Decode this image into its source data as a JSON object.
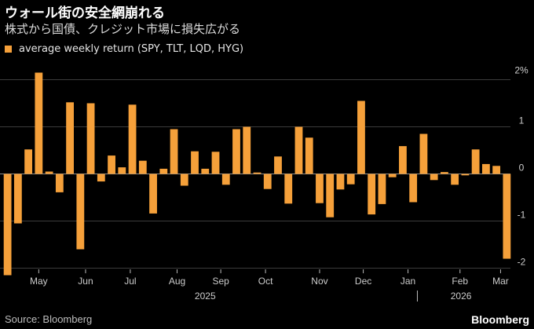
{
  "title": "ウォール街の安全網崩れる",
  "subtitle": "株式から国債、クレジット市場に損失広がる",
  "source": "Source: Bloomberg",
  "brand": "Bloomberg",
  "colors": {
    "bar": "#f5a03a",
    "grid": "#3c3c3c",
    "zero": "#8a8a8a",
    "tick": "#cccccc"
  },
  "chart_data": {
    "type": "bar",
    "series": [
      {
        "name": "average weekly return (SPY, TLT, LQD, HYG)",
        "values": [
          -2.15,
          -1.05,
          0.52,
          2.15,
          0.05,
          -0.39,
          1.52,
          -1.6,
          1.5,
          -0.16,
          0.39,
          0.14,
          1.47,
          0.28,
          -0.84,
          0.11,
          0.95,
          -0.25,
          0.48,
          0.11,
          0.47,
          -0.23,
          0.95,
          1.0,
          0.03,
          -0.32,
          0.37,
          -0.63,
          1.0,
          0.77,
          -0.62,
          -0.92,
          -0.33,
          -0.22,
          1.55,
          -0.86,
          -0.64,
          -0.07,
          0.59,
          -0.6,
          0.85,
          -0.13,
          0.04,
          -0.23,
          -0.03,
          0.52,
          0.21,
          0.17,
          -1.8
        ]
      }
    ],
    "ylim": [
      -2.3,
      2.3
    ],
    "yticks": [
      {
        "value": 2,
        "label": "2%"
      },
      {
        "value": 1,
        "label": "1"
      },
      {
        "value": 0,
        "label": "0"
      },
      {
        "value": -1,
        "label": "-1"
      },
      {
        "value": -2,
        "label": "-2"
      }
    ],
    "month_labels": [
      {
        "label": "May",
        "week_index": 3
      },
      {
        "label": "Jun",
        "week_index": 7.5
      },
      {
        "label": "Jul",
        "week_index": 11.8
      },
      {
        "label": "Aug",
        "week_index": 16.3
      },
      {
        "label": "Sep",
        "week_index": 20.5
      },
      {
        "label": "Oct",
        "week_index": 24.8
      },
      {
        "label": "Nov",
        "week_index": 30
      },
      {
        "label": "Dec",
        "week_index": 34.2
      },
      {
        "label": "Jan",
        "week_index": 38.5
      },
      {
        "label": "Feb",
        "week_index": 43.5
      },
      {
        "label": "Mar",
        "week_index": 47.4
      }
    ],
    "year_labels": [
      {
        "label": "2025",
        "week_index": 19
      },
      {
        "label": "2026",
        "week_index": 43.6
      }
    ],
    "year_divider_week_index": 39.4,
    "grid": true,
    "legend_position": "top-left"
  }
}
